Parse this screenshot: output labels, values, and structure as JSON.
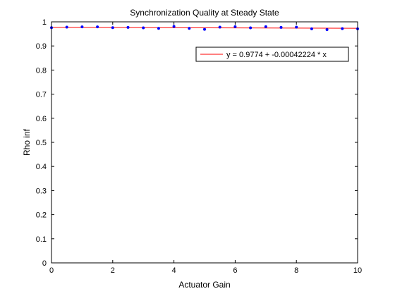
{
  "chart_data": {
    "type": "scatter",
    "title": "Synchronization Quality at Steady State",
    "xlabel": "Actuator Gain",
    "ylabel": "Rho inf",
    "xlim": [
      0,
      10
    ],
    "ylim": [
      0,
      1
    ],
    "xticks": [
      0,
      2,
      4,
      6,
      8,
      10
    ],
    "yticks": [
      0,
      0.1,
      0.2,
      0.3,
      0.4,
      0.5,
      0.6,
      0.7,
      0.8,
      0.9,
      1
    ],
    "ytick_labels": [
      "0",
      "0.1",
      "0.2",
      "0.3",
      "0.4",
      "0.5",
      "0.6",
      "0.7",
      "0.8",
      "0.9",
      "1"
    ],
    "grid": false,
    "legend_position": "top-right",
    "series": [
      {
        "type": "scatter",
        "color": "#0000ff",
        "marker": "dot",
        "x": [
          0,
          0.5,
          1,
          1.5,
          2,
          2.5,
          3,
          3.5,
          4,
          4.5,
          5,
          5.5,
          6,
          6.5,
          7,
          7.5,
          8,
          8.5,
          9,
          9.5,
          10
        ],
        "y": [
          0.976,
          0.978,
          0.979,
          0.979,
          0.976,
          0.977,
          0.975,
          0.973,
          0.981,
          0.973,
          0.969,
          0.978,
          0.98,
          0.975,
          0.98,
          0.977,
          0.978,
          0.971,
          0.968,
          0.972,
          0.971
        ]
      },
      {
        "name": "y = 0.9774 + -0.00042224 * x",
        "type": "line",
        "color": "#ff0000",
        "x": [
          0,
          10
        ],
        "y": [
          0.9774,
          0.9732
        ]
      }
    ]
  }
}
